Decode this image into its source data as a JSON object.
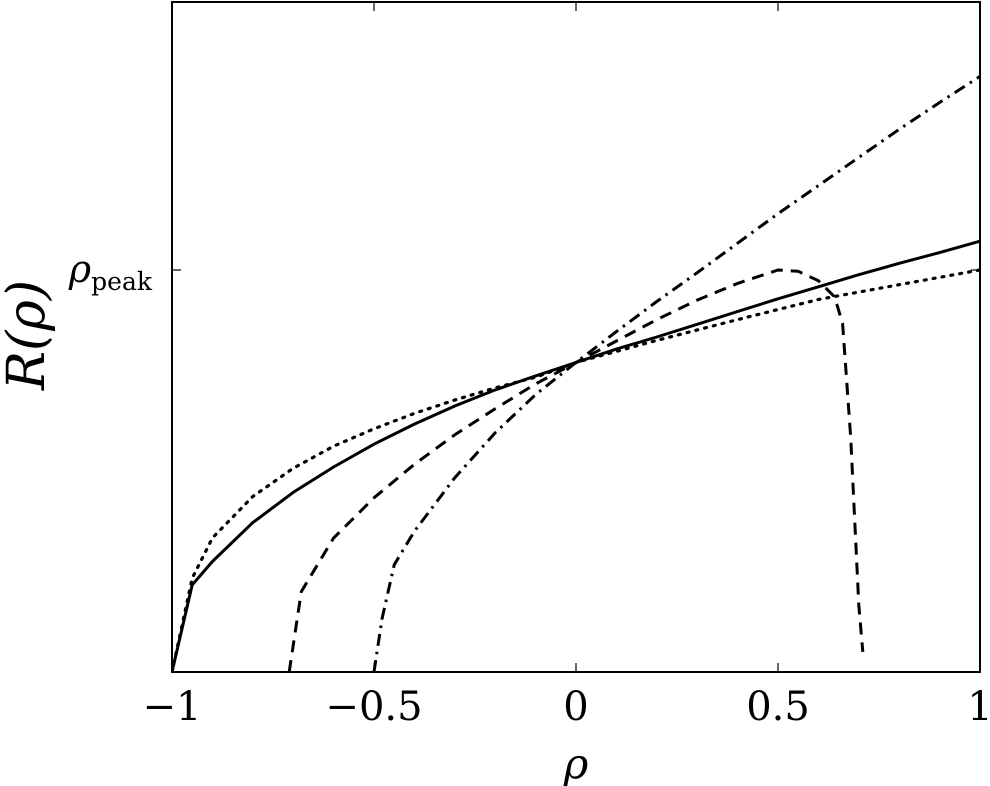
{
  "chart_data": {
    "type": "line",
    "xlabel": "ρ",
    "ylabel": "R(ρ)",
    "xlim": [
      -1,
      1
    ],
    "ylim": [
      0,
      1
    ],
    "grid": false,
    "x_ticks": [
      {
        "value": -1,
        "label": "−1"
      },
      {
        "value": -0.5,
        "label": "−0.5"
      },
      {
        "value": 0,
        "label": "0"
      },
      {
        "value": 0.5,
        "label": "0.5"
      },
      {
        "value": 1,
        "label": "1"
      }
    ],
    "y_ticks": [
      {
        "value": 0.6,
        "label_main": "ρ",
        "label_sub": "peak"
      }
    ],
    "series": [
      {
        "style": "solid",
        "x": [
          -1,
          -0.95,
          -0.9,
          -0.8,
          -0.7,
          -0.6,
          -0.5,
          -0.4,
          -0.3,
          -0.2,
          -0.1,
          0,
          0.1,
          0.2,
          0.3,
          0.4,
          0.5,
          0.6,
          0.7,
          0.8,
          0.9,
          1
        ],
        "y": [
          0,
          0.13,
          0.165,
          0.223,
          0.268,
          0.306,
          0.34,
          0.37,
          0.397,
          0.421,
          0.442,
          0.462,
          0.482,
          0.5,
          0.519,
          0.538,
          0.557,
          0.575,
          0.593,
          0.61,
          0.626,
          0.643
        ]
      },
      {
        "style": "dotted",
        "x": [
          -1,
          -0.95,
          -0.9,
          -0.8,
          -0.7,
          -0.6,
          -0.5,
          -0.4,
          -0.3,
          -0.2,
          -0.1,
          0,
          0.2,
          0.4,
          0.6,
          0.8,
          1
        ],
        "y": [
          0,
          0.14,
          0.2,
          0.262,
          0.304,
          0.337,
          0.363,
          0.386,
          0.406,
          0.424,
          0.44,
          0.462,
          0.495,
          0.526,
          0.556,
          0.578,
          0.6
        ]
      },
      {
        "style": "dashed",
        "x": [
          -0.71,
          -0.68,
          -0.6,
          -0.5,
          -0.4,
          -0.3,
          -0.2,
          -0.1,
          0,
          0.1,
          0.2,
          0.3,
          0.4,
          0.5,
          0.55,
          0.6,
          0.64,
          0.66,
          0.68,
          0.7,
          0.71
        ],
        "y": [
          0,
          0.12,
          0.2,
          0.26,
          0.31,
          0.354,
          0.393,
          0.43,
          0.462,
          0.494,
          0.526,
          0.555,
          0.58,
          0.6,
          0.598,
          0.584,
          0.56,
          0.52,
          0.35,
          0.1,
          0.03
        ]
      },
      {
        "style": "dashdot",
        "x": [
          -0.5,
          -0.48,
          -0.45,
          -0.4,
          -0.3,
          -0.2,
          -0.1,
          0,
          0.1,
          0.2,
          0.3,
          0.4,
          0.5,
          0.6,
          0.7,
          0.8,
          0.9,
          1
        ],
        "y": [
          0,
          0.08,
          0.16,
          0.21,
          0.29,
          0.357,
          0.414,
          0.462,
          0.508,
          0.553,
          0.596,
          0.64,
          0.684,
          0.726,
          0.768,
          0.81,
          0.85,
          0.889
        ]
      }
    ]
  }
}
